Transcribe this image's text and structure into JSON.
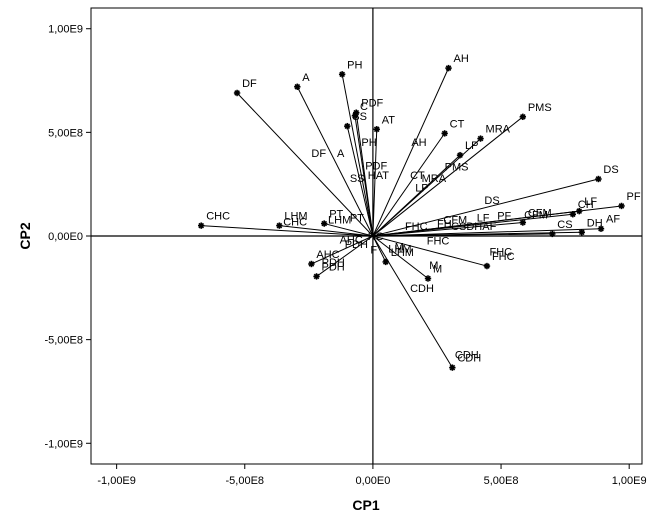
{
  "chart_data": {
    "type": "scatter",
    "xlabel": "CP1",
    "ylabel": "CP2",
    "xlim": [
      -1100000000.0,
      1050000000.0
    ],
    "ylim": [
      -1100000000.0,
      1100000000.0
    ],
    "x_ticks": [
      {
        "value": -1000000000.0,
        "label": "-1,00E9"
      },
      {
        "value": -500000000.0,
        "label": "-5,00E8"
      },
      {
        "value": 0,
        "label": "0,00E0"
      },
      {
        "value": 500000000.0,
        "label": "5,00E8"
      },
      {
        "value": 1000000000.0,
        "label": "1,00E9"
      }
    ],
    "y_ticks": [
      {
        "value": 1000000000.0,
        "label": "1,00E9"
      },
      {
        "value": 500000000.0,
        "label": "5,00E8"
      },
      {
        "value": 0,
        "label": "0,00E0"
      },
      {
        "value": -500000000.0,
        "label": "-5,00E8"
      },
      {
        "value": -1000000000.0,
        "label": "-1,00E9"
      }
    ],
    "reference_lines": {
      "x": 0,
      "y": 0
    },
    "grid": false,
    "legend": "none",
    "vectors_from_origin": true,
    "marker_color": "#000000",
    "line_color": "#000000",
    "points": [
      {
        "label": "DF",
        "x": -530000000.0,
        "y": 690000000.0
      },
      {
        "label": "A",
        "x": -295000000.0,
        "y": 720000000.0
      },
      {
        "label": "PH",
        "x": -120000000.0,
        "y": 780000000.0
      },
      {
        "label": "PDF",
        "x": -65000000.0,
        "y": 595000000.0
      },
      {
        "label": "C",
        "x": -70000000.0,
        "y": 580000000.0
      },
      {
        "label": "SS",
        "x": -100000000.0,
        "y": 530000000.0
      },
      {
        "label": "AT",
        "x": 15000000.0,
        "y": 515000000.0
      },
      {
        "label": "AH",
        "x": 295000000.0,
        "y": 810000000.0
      },
      {
        "label": "PMS",
        "x": 585000000.0,
        "y": 575000000.0
      },
      {
        "label": "CT",
        "x": 280000000.0,
        "y": 495000000.0
      },
      {
        "label": "MRA",
        "x": 420000000.0,
        "y": 470000000.0
      },
      {
        "label": "LP",
        "x": 340000000.0,
        "y": 390000000.0
      },
      {
        "label": "DS",
        "x": 880000000.0,
        "y": 275000000.0
      },
      {
        "label": "PF",
        "x": 970000000.0,
        "y": 145000000.0
      },
      {
        "label": "LF",
        "x": 805000000.0,
        "y": 120000000.0
      },
      {
        "label": "CH",
        "x": 780000000.0,
        "y": 105000000.0
      },
      {
        "label": "AF",
        "x": 890000000.0,
        "y": 35000000.0
      },
      {
        "label": "DH",
        "x": 815000000.0,
        "y": 18000000.0
      },
      {
        "label": "CS",
        "x": 700000000.0,
        "y": 10000000.0
      },
      {
        "label": "CFM",
        "x": 585000000.0,
        "y": 65000000.0
      },
      {
        "label": "CHC",
        "x": -670000000.0,
        "y": 50000000.0
      },
      {
        "label": "LHM",
        "x": -365000000.0,
        "y": 50000000.0
      },
      {
        "label": "PT",
        "x": -190000000.0,
        "y": 60000000.0
      },
      {
        "label": "AHC",
        "x": -240000000.0,
        "y": -135000000.0
      },
      {
        "label": "PDH",
        "x": -220000000.0,
        "y": -195000000.0
      },
      {
        "label": "M",
        "x": 215000000.0,
        "y": -205000000.0
      },
      {
        "label": "FHC",
        "x": 445000000.0,
        "y": -145000000.0
      },
      {
        "label": "CDH",
        "x": 310000000.0,
        "y": -635000000.0
      },
      {
        "label": "LHM",
        "x": 50000000.0,
        "y": -125000000.0
      }
    ],
    "annotations": [
      {
        "text": "DF",
        "x": -240000000.0,
        "y": 380000000.0
      },
      {
        "text": "A",
        "x": -140000000.0,
        "y": 380000000.0
      },
      {
        "text": "PH",
        "x": -45000000.0,
        "y": 435000000.0
      },
      {
        "text": "PDF",
        "x": -30000000.0,
        "y": 320000000.0
      },
      {
        "text": "SS",
        "x": -90000000.0,
        "y": 260000000.0
      },
      {
        "text": "HAT",
        "x": -20000000.0,
        "y": 275000000.0
      },
      {
        "text": "AH",
        "x": 150000000.0,
        "y": 435000000.0
      },
      {
        "text": "CT",
        "x": 145000000.0,
        "y": 275000000.0
      },
      {
        "text": "MRA",
        "x": 190000000.0,
        "y": 260000000.0
      },
      {
        "text": "LP",
        "x": 165000000.0,
        "y": 215000000.0
      },
      {
        "text": "PMS",
        "x": 280000000.0,
        "y": 315000000.0
      },
      {
        "text": "DS",
        "x": 435000000.0,
        "y": 155000000.0
      },
      {
        "text": "CFM",
        "x": 275000000.0,
        "y": 60000000.0
      },
      {
        "text": "LF",
        "x": 405000000.0,
        "y": 70000000.0
      },
      {
        "text": "PF",
        "x": 485000000.0,
        "y": 80000000.0
      },
      {
        "text": "CFM",
        "x": 590000000.0,
        "y": 85000000.0
      },
      {
        "text": "FHC",
        "x": 125000000.0,
        "y": 30000000.0
      },
      {
        "text": "FH",
        "x": 250000000.0,
        "y": 40000000.0
      },
      {
        "text": "CSDHAF",
        "x": 305000000.0,
        "y": 30000000.0
      },
      {
        "text": "FHC",
        "x": 210000000.0,
        "y": -40000000.0
      },
      {
        "text": "CHC",
        "x": -350000000.0,
        "y": 50000000.0
      },
      {
        "text": "LHM",
        "x": -175000000.0,
        "y": 60000000.0
      },
      {
        "text": "PT",
        "x": -90000000.0,
        "y": 70000000.0
      },
      {
        "text": "AHC",
        "x": -130000000.0,
        "y": -35000000.0
      },
      {
        "text": "PDH",
        "x": -110000000.0,
        "y": -58000000.0
      },
      {
        "text": "HC",
        "x": -20000000.0,
        "y": -20000000.0
      },
      {
        "text": "LHM",
        "x": 60000000.0,
        "y": -80000000.0
      },
      {
        "text": "M",
        "x": 220000000.0,
        "y": -160000000.0
      },
      {
        "text": "FHC",
        "x": 455000000.0,
        "y": -95000000.0
      },
      {
        "text": "CDH",
        "x": 145000000.0,
        "y": -270000000.0
      },
      {
        "text": "CDH",
        "x": 320000000.0,
        "y": -590000000.0
      },
      {
        "text": "M",
        "x": 85000000.0,
        "y": -70000000.0
      },
      {
        "text": "F",
        "x": -10000000.0,
        "y": -85000000.0
      },
      {
        "text": "PDH",
        "x": -200000000.0,
        "y": -145000000.0
      }
    ]
  }
}
